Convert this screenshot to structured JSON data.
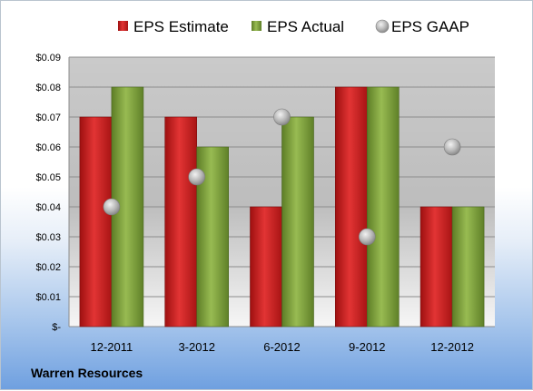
{
  "company": "Warren Resources",
  "chart_data": {
    "type": "bar",
    "categories": [
      "12-2011",
      "3-2012",
      "6-2012",
      "9-2012",
      "12-2012"
    ],
    "series": [
      {
        "name": "EPS Estimate",
        "kind": "bar",
        "color": "#d42a2a",
        "values": [
          0.07,
          0.07,
          0.04,
          0.08,
          0.04
        ]
      },
      {
        "name": "EPS Actual",
        "kind": "bar",
        "color": "#86a843",
        "values": [
          0.08,
          0.06,
          0.07,
          0.08,
          0.04
        ]
      },
      {
        "name": "EPS GAAP",
        "kind": "marker",
        "color": "#b8bcc0",
        "values": [
          0.04,
          0.05,
          0.07,
          0.03,
          0.06
        ]
      }
    ],
    "yticks": [
      "$0.09",
      "$0.08",
      "$0.07",
      "$0.06",
      "$0.05",
      "$0.04",
      "$0.03",
      "$0.02",
      "$0.01",
      "$-"
    ],
    "ylim": [
      0,
      0.09
    ],
    "grid": true,
    "legend": "top"
  }
}
